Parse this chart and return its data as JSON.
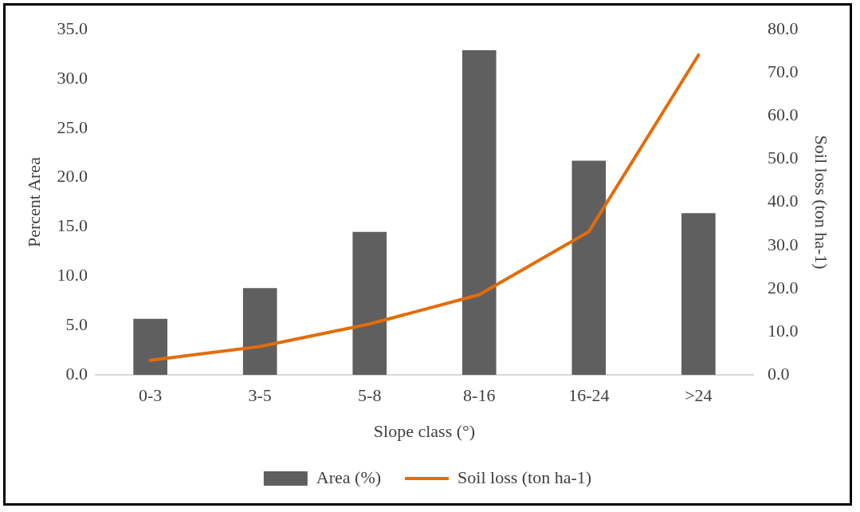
{
  "chart_data": {
    "type": "bar",
    "xlabel": "Slope class (°)",
    "ylabel": "Percent Area",
    "y2label": "Soil loss (ton ha-1)",
    "categories": [
      "0-3",
      "3-5",
      "5-8",
      "8-16",
      "16-24",
      ">24"
    ],
    "series": [
      {
        "name": "Area (%)",
        "color": "#5f5f5f",
        "values": [
          5.7,
          8.8,
          14.5,
          32.9,
          21.7,
          16.4
        ]
      },
      {
        "name": "Soil loss (ton ha-1)",
        "type": "line",
        "axis": "y2",
        "color": "#e36c09",
        "values": [
          3.4,
          6.6,
          11.8,
          18.6,
          33.2,
          74.1
        ]
      }
    ],
    "ylim": [
      0,
      35
    ],
    "yticks": [
      {
        "value": 0,
        "label": "0.0"
      },
      {
        "value": 5,
        "label": "5.0"
      },
      {
        "value": 10,
        "label": "10.0"
      },
      {
        "value": 15,
        "label": "15.0"
      },
      {
        "value": 20,
        "label": "20.0"
      },
      {
        "value": 25,
        "label": "25.0"
      },
      {
        "value": 30,
        "label": "30.0"
      },
      {
        "value": 35,
        "label": "35.0"
      }
    ],
    "y2lim": [
      0,
      80
    ],
    "y2ticks": [
      {
        "value": 0,
        "label": "0.0"
      },
      {
        "value": 10,
        "label": "10.0"
      },
      {
        "value": 20,
        "label": "20.0"
      },
      {
        "value": 30,
        "label": "30.0"
      },
      {
        "value": 40,
        "label": "40.0"
      },
      {
        "value": 50,
        "label": "50.0"
      },
      {
        "value": 60,
        "label": "60.0"
      },
      {
        "value": 70,
        "label": "70.0"
      },
      {
        "value": 80,
        "label": "80.0"
      }
    ],
    "grid": false,
    "legend": "bottom",
    "marker": "none"
  }
}
